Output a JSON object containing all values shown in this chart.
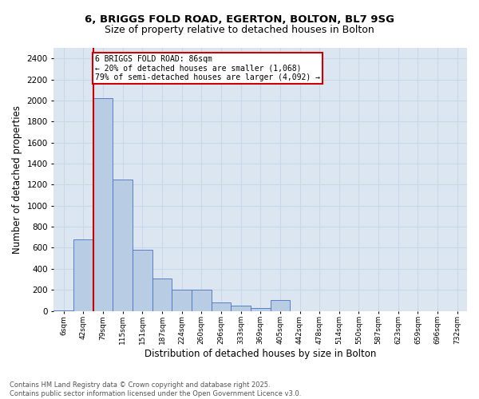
{
  "title_line1": "6, BRIGGS FOLD ROAD, EGERTON, BOLTON, BL7 9SG",
  "title_line2": "Size of property relative to detached houses in Bolton",
  "xlabel": "Distribution of detached houses by size in Bolton",
  "ylabel": "Number of detached properties",
  "footnote": "Contains HM Land Registry data © Crown copyright and database right 2025.\nContains public sector information licensed under the Open Government Licence v3.0.",
  "bar_values": [
    5,
    680,
    2020,
    1250,
    580,
    310,
    200,
    200,
    80,
    50,
    30,
    100,
    0,
    0,
    0,
    0,
    0,
    0,
    0,
    0,
    0
  ],
  "bin_labels": [
    "6sqm",
    "42sqm",
    "79sqm",
    "115sqm",
    "151sqm",
    "187sqm",
    "224sqm",
    "260sqm",
    "296sqm",
    "333sqm",
    "369sqm",
    "405sqm",
    "442sqm",
    "478sqm",
    "514sqm",
    "550sqm",
    "587sqm",
    "623sqm",
    "659sqm",
    "696sqm",
    "732sqm"
  ],
  "bar_color": "#b8cce4",
  "bar_edge_color": "#4472c4",
  "grid_color": "#c8d8ea",
  "bg_color": "#dce6f1",
  "annotation_text": "6 BRIGGS FOLD ROAD: 86sqm\n← 20% of detached houses are smaller (1,068)\n79% of semi-detached houses are larger (4,092) →",
  "annotation_box_color": "#cc0000",
  "red_line_color": "#cc0000",
  "ylim": [
    0,
    2500
  ],
  "yticks": [
    0,
    200,
    400,
    600,
    800,
    1000,
    1200,
    1400,
    1600,
    1800,
    2000,
    2200,
    2400
  ],
  "title1_fontsize": 9.5,
  "title2_fontsize": 9,
  "xlabel_fontsize": 8.5,
  "ylabel_fontsize": 8.5,
  "footnote_fontsize": 6.0
}
